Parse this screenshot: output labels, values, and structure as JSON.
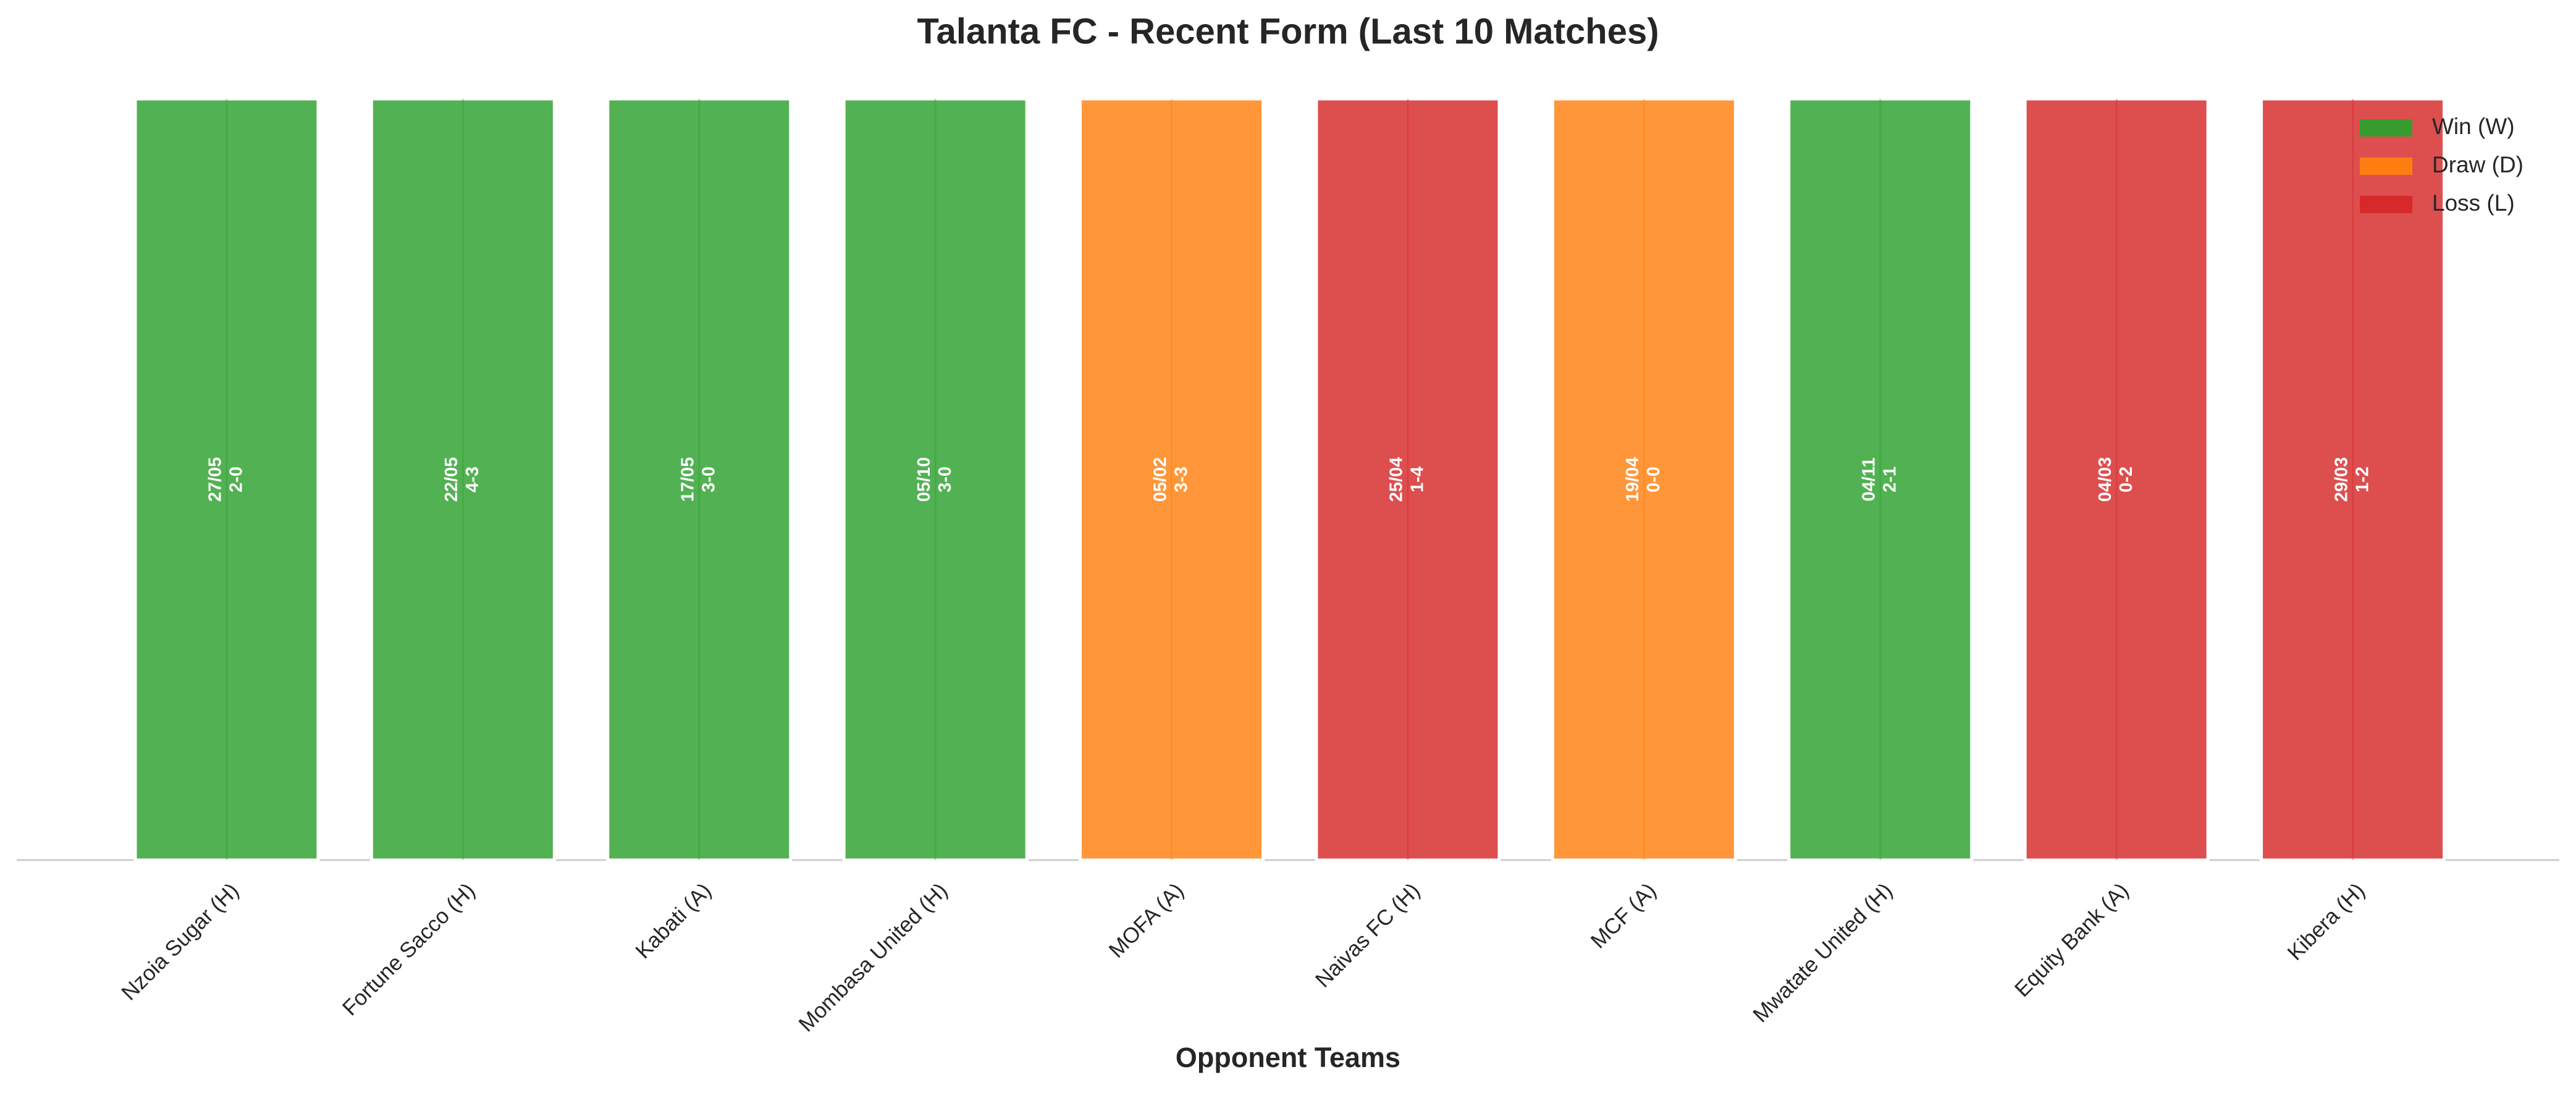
{
  "chart_data": {
    "type": "bar",
    "title": "Talanta FC - Recent Form (Last 10 Matches)",
    "x_label": "Opponent Teams",
    "categories": [
      "Nzoia Sugar (H)",
      "Fortune Sacco (H)",
      "Kabati (A)",
      "Mombasa United (H)",
      "MOFA (A)",
      "Naivas FC (H)",
      "MCF (A)",
      "Mwatate United (H)",
      "Equity Bank (A)",
      "Kibera (H)"
    ],
    "values": [
      1,
      1,
      1,
      1,
      1,
      1,
      1,
      1,
      1,
      1
    ],
    "dates": [
      "27/05",
      "22/05",
      "17/05",
      "05/10",
      "05/02",
      "25/04",
      "19/04",
      "04/11",
      "04/03",
      "29/03"
    ],
    "scores": [
      "2-0",
      "4-3",
      "3-0",
      "3-0",
      "3-3",
      "1-4",
      "0-0",
      "2-1",
      "0-2",
      "1-2"
    ],
    "colors": [
      "#2ca02c",
      "#2ca02c",
      "#2ca02c",
      "#2ca02c",
      "#ff7f0e",
      "#d62728",
      "#ff7f0e",
      "#2ca02c",
      "#d62728",
      "#d62728"
    ],
    "ylim": [
      0,
      1
    ],
    "legend": [
      {
        "name": "Win (W)",
        "color": "#2ca02c"
      },
      {
        "name": "Draw (D)",
        "color": "#ff7f0e"
      },
      {
        "name": "Loss (L)",
        "color": "#d62728"
      }
    ],
    "legend_position": "upper right"
  }
}
